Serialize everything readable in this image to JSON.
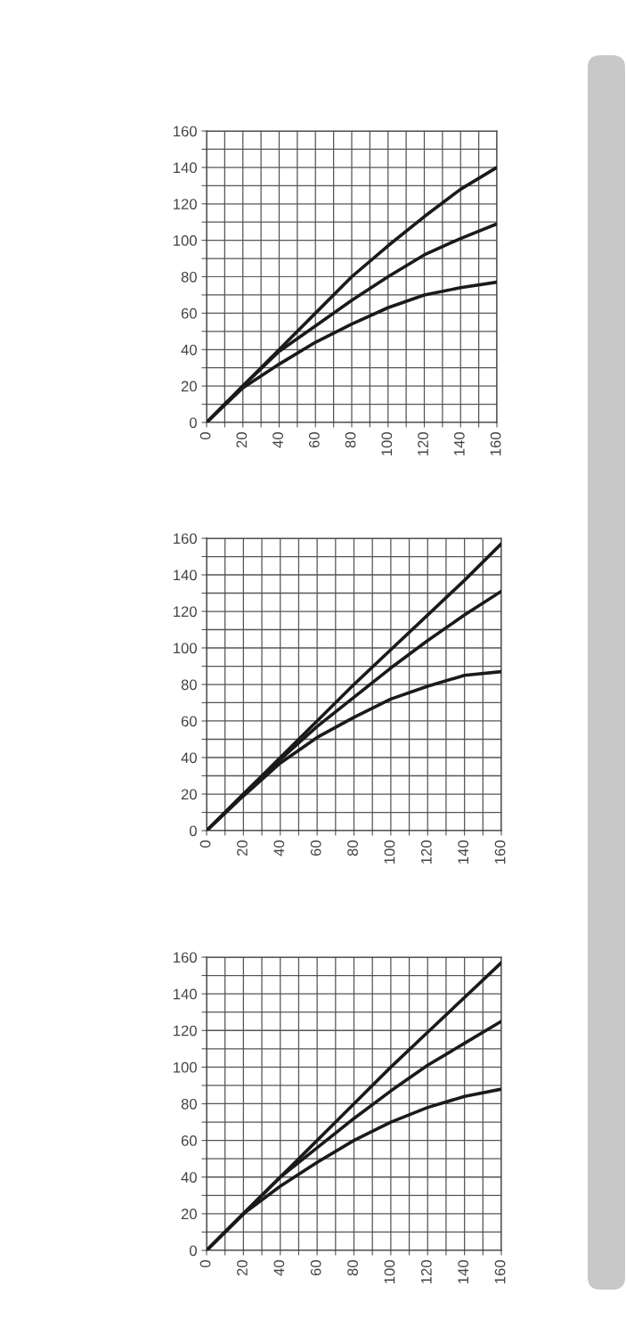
{
  "chart_data": [
    {
      "type": "line",
      "x": [
        0,
        20,
        40,
        60,
        80,
        100,
        120,
        140,
        160
      ],
      "xlim": [
        0,
        160
      ],
      "ylim": [
        0,
        160
      ],
      "xticks": [
        0,
        {
          "value": 10,
          "label": null
        },
        20,
        {
          "value": 30,
          "label": null
        },
        40,
        {
          "value": 50,
          "label": null
        },
        60,
        {
          "value": 70,
          "label": null
        },
        80,
        {
          "value": 90,
          "label": null
        },
        100,
        {
          "value": 110,
          "label": null
        },
        120,
        {
          "value": 130,
          "label": null
        },
        140,
        {
          "value": 150,
          "label": null
        },
        160
      ],
      "yticks": [
        0,
        {
          "value": 10,
          "label": null
        },
        20,
        {
          "value": 30,
          "label": null
        },
        40,
        {
          "value": 50,
          "label": null
        },
        60,
        {
          "value": 70,
          "label": null
        },
        80,
        {
          "value": 90,
          "label": null
        },
        100,
        {
          "value": 110,
          "label": null
        },
        120,
        {
          "value": 130,
          "label": null
        },
        140,
        {
          "value": 150,
          "label": null
        },
        160
      ],
      "grid": true,
      "marker": "none",
      "line_style": "solid",
      "series": [
        {
          "color": "#1a1a1a",
          "values": [
            0,
            20,
            40,
            60,
            80,
            97,
            113,
            128,
            140
          ]
        },
        {
          "color": "#1a1a1a",
          "values": [
            0,
            20,
            39,
            53,
            67,
            80,
            92,
            101,
            109
          ]
        },
        {
          "color": "#1a1a1a",
          "values": [
            0,
            19,
            32,
            44,
            54,
            63,
            70,
            74,
            77
          ]
        }
      ]
    },
    {
      "type": "line",
      "x": [
        0,
        20,
        40,
        60,
        80,
        100,
        120,
        140,
        160
      ],
      "xlim": [
        0,
        160
      ],
      "ylim": [
        0,
        160
      ],
      "xticks": [
        0,
        {
          "value": 10,
          "label": null
        },
        20,
        {
          "value": 30,
          "label": null
        },
        40,
        {
          "value": 50,
          "label": null
        },
        60,
        {
          "value": 70,
          "label": null
        },
        80,
        {
          "value": 90,
          "label": null
        },
        100,
        {
          "value": 110,
          "label": null
        },
        120,
        {
          "value": 130,
          "label": null
        },
        140,
        {
          "value": 150,
          "label": null
        },
        160
      ],
      "yticks": [
        0,
        {
          "value": 10,
          "label": null
        },
        20,
        {
          "value": 30,
          "label": null
        },
        40,
        {
          "value": 50,
          "label": null
        },
        60,
        {
          "value": 70,
          "label": null
        },
        80,
        {
          "value": 90,
          "label": null
        },
        100,
        {
          "value": 110,
          "label": null
        },
        120,
        {
          "value": 130,
          "label": null
        },
        140,
        {
          "value": 150,
          "label": null
        },
        160
      ],
      "grid": true,
      "marker": "none",
      "line_style": "solid",
      "series": [
        {
          "color": "#1a1a1a",
          "values": [
            0,
            20,
            40,
            60,
            80,
            99,
            118,
            137,
            157
          ]
        },
        {
          "color": "#1a1a1a",
          "values": [
            0,
            20,
            39,
            57,
            73,
            89,
            104,
            118,
            131
          ]
        },
        {
          "color": "#1a1a1a",
          "values": [
            0,
            19,
            37,
            51,
            62,
            72,
            79,
            85,
            87
          ]
        }
      ]
    },
    {
      "type": "line",
      "x": [
        0,
        20,
        40,
        60,
        80,
        100,
        120,
        140,
        160
      ],
      "xlim": [
        0,
        160
      ],
      "ylim": [
        0,
        160
      ],
      "xticks": [
        0,
        {
          "value": 10,
          "label": null
        },
        20,
        {
          "value": 30,
          "label": null
        },
        40,
        {
          "value": 50,
          "label": null
        },
        60,
        {
          "value": 70,
          "label": null
        },
        80,
        {
          "value": 90,
          "label": null
        },
        100,
        {
          "value": 110,
          "label": null
        },
        120,
        {
          "value": 130,
          "label": null
        },
        140,
        {
          "value": 150,
          "label": null
        },
        160
      ],
      "yticks": [
        0,
        {
          "value": 10,
          "label": null
        },
        20,
        {
          "value": 30,
          "label": null
        },
        40,
        {
          "value": 50,
          "label": null
        },
        60,
        {
          "value": 70,
          "label": null
        },
        80,
        {
          "value": 90,
          "label": null
        },
        100,
        {
          "value": 110,
          "label": null
        },
        120,
        {
          "value": 130,
          "label": null
        },
        140,
        {
          "value": 150,
          "label": null
        },
        160
      ],
      "grid": true,
      "marker": "none",
      "line_style": "solid",
      "series": [
        {
          "color": "#1a1a1a",
          "values": [
            0,
            20,
            40,
            60,
            80,
            100,
            119,
            138,
            157
          ]
        },
        {
          "color": "#1a1a1a",
          "values": [
            0,
            20,
            40,
            56,
            72,
            87,
            101,
            113,
            125
          ]
        },
        {
          "color": "#1a1a1a",
          "values": [
            0,
            20,
            35,
            48,
            60,
            70,
            78,
            84,
            88
          ]
        }
      ]
    }
  ]
}
